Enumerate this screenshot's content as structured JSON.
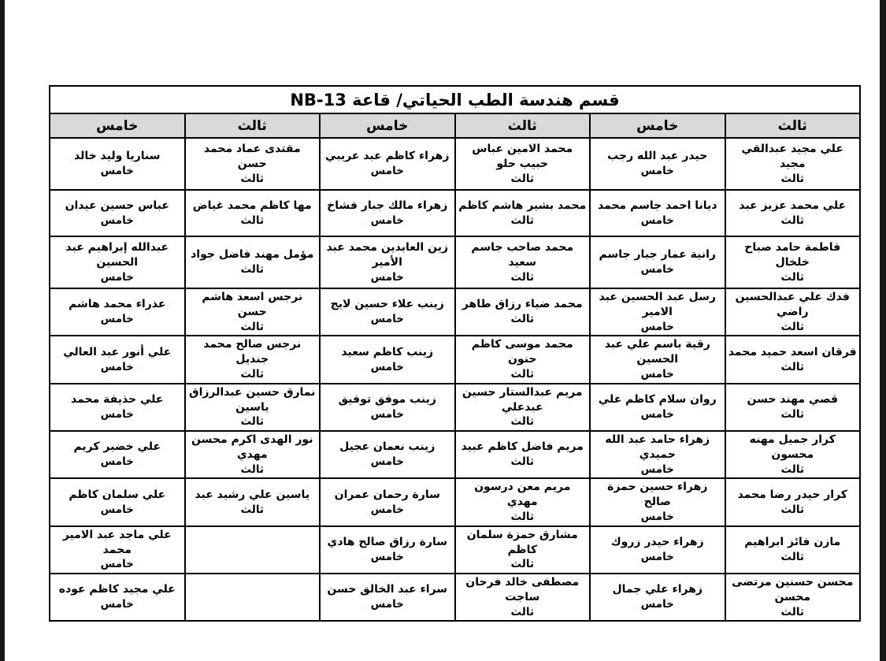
{
  "document": {
    "title": "قسم هندسة الطب الحياتي/ قاعة NB-13"
  },
  "colors": {
    "header_bg": "#d9d9d9",
    "border": "#000000",
    "edge_bar": "#181818",
    "page_bg": "#ffffff"
  },
  "table": {
    "headers": [
      "ثالث",
      "خامس",
      "ثالث",
      "خامس",
      "ثالث",
      "خامس"
    ],
    "rows": [
      [
        {
          "name": "علي مجيد عبدالقي مجيد",
          "level": "ثالث"
        },
        {
          "name": "حيدر عبد الله رجب",
          "level": "خامس"
        },
        {
          "name": "محمد الامين عباس حبيب حلو",
          "level": "ثالث"
        },
        {
          "name": "زهراء كاظم عبد عريبي",
          "level": "خامس"
        },
        {
          "name": "مقتدى عماد محمد حسن",
          "level": "ثالث"
        },
        {
          "name": "سناريا وليد خالد",
          "level": "خامس"
        }
      ],
      [
        {
          "name": "علي محمد عزيز عبد",
          "level": "ثالث"
        },
        {
          "name": "ديانا احمد جاسم محمد",
          "level": "خامس"
        },
        {
          "name": "محمد بشير هاشم كاظم",
          "level": "ثالث"
        },
        {
          "name": "زهراء مالك جبار فشاخ",
          "level": "خامس"
        },
        {
          "name": "مها كاظم محمد غياض",
          "level": "ثالث"
        },
        {
          "name": "عباس حسين عيدان",
          "level": "خامس"
        }
      ],
      [
        {
          "name": "فاطمة حامد صباح خلخال",
          "level": "ثالث"
        },
        {
          "name": "رانية عمار جبار جاسم",
          "level": "خامس"
        },
        {
          "name": "محمد صاحب جاسم سعيد",
          "level": "ثالث"
        },
        {
          "name": "زين العابدين محمد عبد الأمير",
          "level": "خامس"
        },
        {
          "name": "مؤمل مهند فاضل جواد",
          "level": "ثالث"
        },
        {
          "name": "عبدالله إبراهيم عبد الحسين",
          "level": "خامس"
        }
      ],
      [
        {
          "name": "فدك علي عبدالحسين راضي",
          "level": "ثالث"
        },
        {
          "name": "رسل عبد الحسين عبد الامير",
          "level": "خامس"
        },
        {
          "name": "محمد ضياء رزاق طاهر",
          "level": "ثالث"
        },
        {
          "name": "زينب علاء حسين لايج",
          "level": "خامس"
        },
        {
          "name": "نرجس اسعد هاشم حسن",
          "level": "ثالث"
        },
        {
          "name": "عذراء محمد هاشم",
          "level": "خامس"
        }
      ],
      [
        {
          "name": "فرقان اسعد حميد محمد",
          "level": "ثالث"
        },
        {
          "name": "رقية باسم علي عبد الحسين",
          "level": "خامس"
        },
        {
          "name": "محمد موسى كاظم حنون",
          "level": "ثالث"
        },
        {
          "name": "زينب كاظم سعيد",
          "level": "خامس"
        },
        {
          "name": "نرجس صالح محمد جنديل",
          "level": "ثالث"
        },
        {
          "name": "علي أنور عبد العالي",
          "level": "خامس"
        }
      ],
      [
        {
          "name": "قصي مهند حسن",
          "level": "ثالث"
        },
        {
          "name": "روان سلام كاظم علي",
          "level": "خامس"
        },
        {
          "name": "مريم عبدالستار حسين عبدعلي",
          "level": "ثالث"
        },
        {
          "name": "زينب موفق توفيق",
          "level": "خامس"
        },
        {
          "name": "نمارق حسين عبدالرزاق ياسين",
          "level": "ثالث"
        },
        {
          "name": "علي حذيفة محمد",
          "level": "خامس"
        }
      ],
      [
        {
          "name": "كرار جميل مهنه محسون",
          "level": "ثالث"
        },
        {
          "name": "زهراء حامد عبد الله حميدي",
          "level": "خامس"
        },
        {
          "name": "مريم فاضل كاظم عبيد",
          "level": "ثالث"
        },
        {
          "name": "زينب نعمان عجيل",
          "level": "خامس"
        },
        {
          "name": "نور الهدى اكرم محسن مهدي",
          "level": "ثالث"
        },
        {
          "name": "علي خضير كريم",
          "level": "خامس"
        }
      ],
      [
        {
          "name": "كرار حيدر رضا محمد",
          "level": "ثالث"
        },
        {
          "name": "زهراء حسين حمزة صالح",
          "level": "خامس"
        },
        {
          "name": "مريم معن درسون مهدي",
          "level": "ثالث"
        },
        {
          "name": "سارة رحمان عمران",
          "level": "خامس"
        },
        {
          "name": "ياسين علي رشيد عبد",
          "level": "ثالث"
        },
        {
          "name": "علي سلمان كاظم",
          "level": "خامس"
        }
      ],
      [
        {
          "name": "مازن فائز ابراهيم",
          "level": "ثالث"
        },
        {
          "name": "زهراء حيدر زروك",
          "level": "خامس"
        },
        {
          "name": "مشارق حمزة سلمان كاظم",
          "level": "ثالث"
        },
        {
          "name": "سارة رزاق صالح هادي",
          "level": "خامس"
        },
        {
          "name": "",
          "level": ""
        },
        {
          "name": "علي ماجد عبد الامير محمد",
          "level": "خامس"
        }
      ],
      [
        {
          "name": "محسن حسنين مرتضى محسن",
          "level": "ثالث"
        },
        {
          "name": "زهراء علي جمال",
          "level": "خامس"
        },
        {
          "name": "مصطفى خالد فرحان ساجت",
          "level": "ثالث"
        },
        {
          "name": "سراء عبد الخالق حسن",
          "level": "خامس"
        },
        {
          "name": "",
          "level": ""
        },
        {
          "name": "علي مجيد كاظم عوده",
          "level": "خامس"
        }
      ]
    ]
  }
}
